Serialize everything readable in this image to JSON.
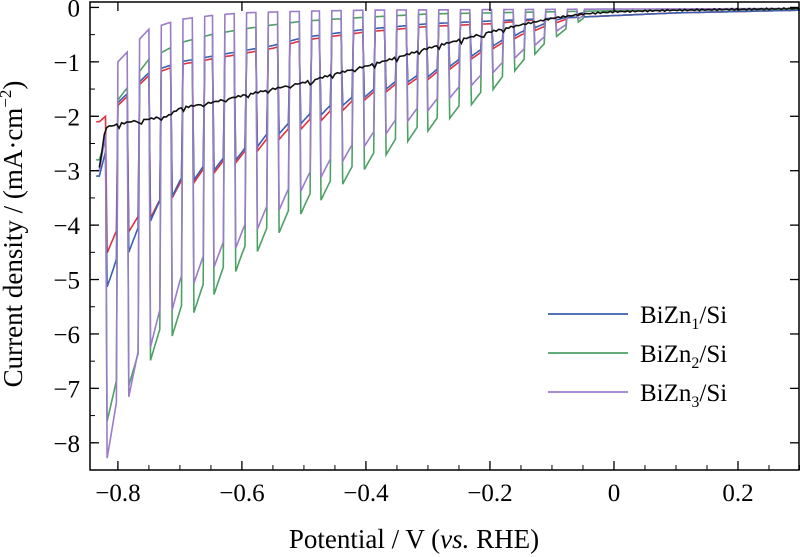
{
  "chart_data": {
    "type": "line",
    "title": "",
    "xlabel": {
      "main": "Potential / V (",
      "italic": "vs.",
      "tail": " RHE)"
    },
    "ylabel": "Current density / (mA·cm",
    "ylabel_sup": "−2",
    "ylabel_close": ")",
    "xlim": [
      -0.845,
      0.3
    ],
    "ylim": [
      -8.5,
      0.1
    ],
    "x_ticks": [
      -0.8,
      -0.6,
      -0.4,
      -0.2,
      0,
      0.2
    ],
    "x_tick_labels": [
      "−0.8",
      "−0.6",
      "−0.4",
      "−0.2",
      "0",
      "0.2"
    ],
    "y_ticks": [
      0,
      -1,
      -2,
      -3,
      -4,
      -5,
      -6,
      -7,
      -8
    ],
    "y_tick_labels": [
      "0",
      "−1",
      "−2",
      "−3",
      "−4",
      "−5",
      "−6",
      "−7",
      "−8"
    ],
    "grid": false,
    "legend_position": "bottom-right",
    "chopped_light": {
      "start": -0.835,
      "period": 0.0345,
      "end": -0.05
    },
    "series": [
      {
        "name": "BiZn1/Si",
        "name_base": "BiZn",
        "name_sub": "1",
        "name_tail": "/Si",
        "color": "#3a5fb0",
        "in_legend": true,
        "light": [
          [
            -0.83,
            -5.2
          ],
          [
            -0.8,
            -4.55
          ],
          [
            -0.75,
            -3.75
          ],
          [
            -0.7,
            -3.15
          ],
          [
            -0.65,
            -2.85
          ],
          [
            -0.6,
            -2.6
          ],
          [
            -0.55,
            -2.25
          ],
          [
            -0.5,
            -2.0
          ],
          [
            -0.45,
            -1.75
          ],
          [
            -0.4,
            -1.55
          ],
          [
            -0.35,
            -1.35
          ],
          [
            -0.3,
            -1.2
          ],
          [
            -0.25,
            -0.95
          ],
          [
            -0.2,
            -0.7
          ],
          [
            -0.15,
            -0.45
          ],
          [
            -0.1,
            -0.25
          ],
          [
            -0.05,
            -0.1
          ]
        ],
        "dark": [
          [
            -0.83,
            -3.1
          ],
          [
            -0.8,
            -1.75
          ],
          [
            -0.75,
            -1.2
          ],
          [
            -0.7,
            -1.0
          ],
          [
            -0.65,
            -0.9
          ],
          [
            -0.6,
            -0.8
          ],
          [
            -0.55,
            -0.7
          ],
          [
            -0.5,
            -0.55
          ],
          [
            -0.4,
            -0.4
          ],
          [
            -0.3,
            -0.3
          ],
          [
            -0.2,
            -0.25
          ],
          [
            -0.1,
            -0.2
          ],
          [
            0.0,
            -0.15
          ],
          [
            0.1,
            -0.1
          ],
          [
            0.3,
            -0.05
          ]
        ]
      },
      {
        "name": "",
        "color": "#e0313d",
        "in_legend": false,
        "light": [
          [
            -0.83,
            -4.5
          ],
          [
            -0.8,
            -4.05
          ],
          [
            -0.75,
            -3.7
          ],
          [
            -0.7,
            -3.2
          ],
          [
            -0.65,
            -2.9
          ],
          [
            -0.6,
            -2.65
          ],
          [
            -0.55,
            -2.35
          ],
          [
            -0.5,
            -2.1
          ],
          [
            -0.45,
            -1.85
          ],
          [
            -0.4,
            -1.6
          ],
          [
            -0.35,
            -1.4
          ],
          [
            -0.3,
            -1.25
          ],
          [
            -0.25,
            -1.0
          ],
          [
            -0.2,
            -0.75
          ],
          [
            -0.15,
            -0.5
          ],
          [
            -0.1,
            -0.3
          ],
          [
            -0.05,
            -0.12
          ]
        ],
        "dark": [
          [
            -0.83,
            -2.1
          ],
          [
            -0.8,
            -1.8
          ],
          [
            -0.75,
            -1.25
          ],
          [
            -0.7,
            -1.05
          ],
          [
            -0.65,
            -0.95
          ],
          [
            -0.6,
            -0.85
          ],
          [
            -0.55,
            -0.75
          ],
          [
            -0.5,
            -0.6
          ],
          [
            -0.4,
            -0.45
          ],
          [
            -0.3,
            -0.35
          ],
          [
            -0.2,
            -0.3
          ],
          [
            -0.1,
            -0.2
          ],
          [
            0.0,
            -0.15
          ],
          [
            0.1,
            -0.1
          ],
          [
            0.3,
            -0.05
          ]
        ]
      },
      {
        "name": "BiZn2/Si",
        "name_base": "BiZn",
        "name_sub": "2",
        "name_tail": "/Si",
        "color": "#4da066",
        "in_legend": true,
        "light": [
          [
            -0.83,
            -7.5
          ],
          [
            -0.8,
            -6.75
          ],
          [
            -0.75,
            -6.1
          ],
          [
            -0.7,
            -5.5
          ],
          [
            -0.65,
            -4.95
          ],
          [
            -0.6,
            -4.4
          ],
          [
            -0.55,
            -3.95
          ],
          [
            -0.5,
            -3.5
          ],
          [
            -0.45,
            -3.1
          ],
          [
            -0.4,
            -2.75
          ],
          [
            -0.35,
            -2.4
          ],
          [
            -0.3,
            -2.1
          ],
          [
            -0.25,
            -1.8
          ],
          [
            -0.2,
            -1.45
          ],
          [
            -0.15,
            -1.0
          ],
          [
            -0.1,
            -0.55
          ],
          [
            -0.05,
            -0.2
          ]
        ],
        "dark": [
          [
            -0.83,
            -2.8
          ],
          [
            -0.8,
            -1.7
          ],
          [
            -0.75,
            -0.95
          ],
          [
            -0.7,
            -0.65
          ],
          [
            -0.65,
            -0.5
          ],
          [
            -0.6,
            -0.4
          ],
          [
            -0.55,
            -0.32
          ],
          [
            -0.5,
            -0.25
          ],
          [
            -0.4,
            -0.18
          ],
          [
            -0.3,
            -0.12
          ],
          [
            -0.2,
            -0.1
          ],
          [
            -0.1,
            -0.08
          ],
          [
            0.0,
            -0.06
          ],
          [
            0.1,
            -0.05
          ],
          [
            0.3,
            -0.03
          ]
        ]
      },
      {
        "name": "BiZn3/Si",
        "name_base": "BiZn",
        "name_sub": "3",
        "name_tail": "/Si",
        "color": "#9a7cc9",
        "in_legend": true,
        "light": [
          [
            -0.83,
            -8.3
          ],
          [
            -0.8,
            -7.1
          ],
          [
            -0.75,
            -5.85
          ],
          [
            -0.7,
            -4.95
          ],
          [
            -0.65,
            -4.45
          ],
          [
            -0.6,
            -4.0
          ],
          [
            -0.55,
            -3.55
          ],
          [
            -0.5,
            -3.1
          ],
          [
            -0.45,
            -2.7
          ],
          [
            -0.4,
            -2.35
          ],
          [
            -0.35,
            -2.05
          ],
          [
            -0.3,
            -1.75
          ],
          [
            -0.25,
            -1.45
          ],
          [
            -0.2,
            -1.15
          ],
          [
            -0.15,
            -0.8
          ],
          [
            -0.1,
            -0.45
          ],
          [
            -0.05,
            -0.15
          ]
        ],
        "dark": [
          [
            -0.83,
            -3.0
          ],
          [
            -0.8,
            -1.0
          ],
          [
            -0.75,
            -0.4
          ],
          [
            -0.7,
            -0.22
          ],
          [
            -0.65,
            -0.15
          ],
          [
            -0.6,
            -0.1
          ],
          [
            -0.5,
            -0.07
          ],
          [
            -0.4,
            -0.05
          ],
          [
            -0.2,
            -0.04
          ],
          [
            0.0,
            -0.03
          ],
          [
            0.3,
            -0.02
          ]
        ]
      },
      {
        "name": "",
        "color": "#111111",
        "in_legend": false,
        "chopped": false,
        "points": [
          [
            -0.83,
            -2.95
          ],
          [
            -0.82,
            -2.2
          ],
          [
            -0.8,
            -2.15
          ],
          [
            -0.78,
            -2.1
          ],
          [
            -0.75,
            -2.05
          ],
          [
            -0.72,
            -2.0
          ],
          [
            -0.7,
            -1.85
          ],
          [
            -0.65,
            -1.75
          ],
          [
            -0.6,
            -1.62
          ],
          [
            -0.55,
            -1.5
          ],
          [
            -0.5,
            -1.38
          ],
          [
            -0.45,
            -1.22
          ],
          [
            -0.4,
            -1.08
          ],
          [
            -0.35,
            -0.92
          ],
          [
            -0.3,
            -0.75
          ],
          [
            -0.25,
            -0.6
          ],
          [
            -0.2,
            -0.45
          ],
          [
            -0.15,
            -0.32
          ],
          [
            -0.1,
            -0.2
          ],
          [
            -0.05,
            -0.12
          ],
          [
            0.0,
            -0.08
          ],
          [
            0.1,
            -0.05
          ],
          [
            0.3,
            -0.02
          ]
        ],
        "steps": true
      }
    ]
  }
}
